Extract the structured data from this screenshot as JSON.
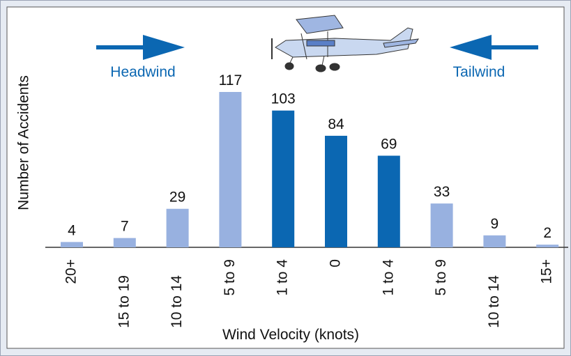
{
  "chart_data": {
    "type": "bar",
    "y_label": "Number of Accidents",
    "x_label": "Wind Velocity (knots)",
    "annotations": [
      "Headwind",
      "Tailwind"
    ],
    "categories": [
      "20+",
      "15 to 19",
      "10 to 14",
      "5 to 9",
      "1 to 4",
      "0",
      "1 to 4",
      "5 to 9",
      "10 to 14",
      "15+"
    ],
    "values": [
      4,
      7,
      29,
      117,
      103,
      84,
      69,
      33,
      9,
      2
    ],
    "colors": [
      "#98b1e0",
      "#98b1e0",
      "#98b1e0",
      "#98b1e0",
      "#0b67b2",
      "#0b67b2",
      "#0b67b2",
      "#98b1e0",
      "#98b1e0",
      "#98b1e0"
    ]
  }
}
